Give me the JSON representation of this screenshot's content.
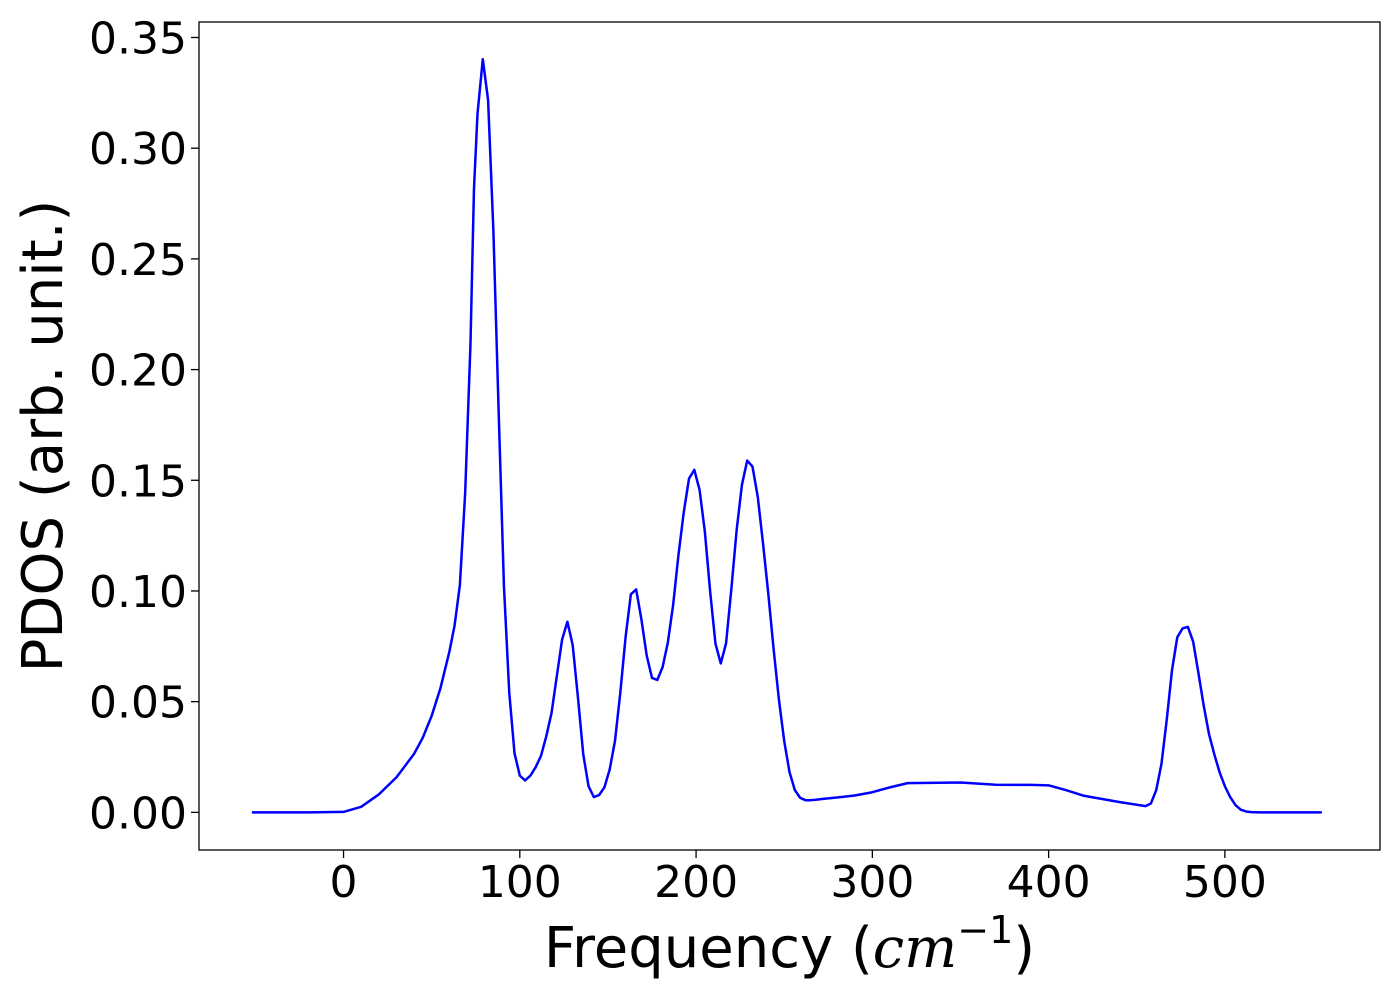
{
  "chart_data": {
    "type": "line",
    "title": "",
    "xlabel": "Frequency (cm^{-1})",
    "xlabel_parts": {
      "prefix": "Frequency (",
      "unit_base": "cm",
      "unit_exp": "−1",
      "suffix": ")"
    },
    "ylabel": "PDOS (arb. unit.)",
    "xlim": [
      -82,
      588
    ],
    "ylim": [
      -0.017,
      0.357
    ],
    "xticks": [
      0,
      100,
      200,
      300,
      400,
      500
    ],
    "xtick_labels": [
      "0",
      "100",
      "200",
      "300",
      "400",
      "500"
    ],
    "yticks": [
      0.0,
      0.05,
      0.1,
      0.15,
      0.2,
      0.25,
      0.3,
      0.35
    ],
    "ytick_labels": [
      "0.00",
      "0.05",
      "0.10",
      "0.15",
      "0.20",
      "0.25",
      "0.30",
      "0.35"
    ],
    "grid": false,
    "legend": "none",
    "series": [
      {
        "color": "#0000ff",
        "x": [
          -52,
          -40,
          -20,
          0,
          10,
          20,
          30,
          40,
          45,
          50,
          55,
          60,
          63,
          66,
          69,
          72,
          74,
          76,
          79,
          82,
          85,
          88,
          91,
          94,
          97,
          100,
          103,
          106,
          109,
          112,
          115,
          118,
          121,
          124,
          127,
          130,
          133,
          136,
          139,
          142,
          145,
          148,
          151,
          154,
          157,
          160,
          163,
          166,
          169,
          172,
          175,
          178,
          181,
          184,
          187,
          190,
          193,
          196,
          199,
          202,
          205,
          208,
          211,
          214,
          217,
          220,
          223,
          226,
          229,
          232,
          235,
          238,
          241,
          244,
          247,
          250,
          253,
          256,
          259,
          262,
          265,
          268,
          272,
          280,
          290,
          300,
          310,
          320,
          350,
          370,
          390,
          400,
          410,
          420,
          440,
          455,
          458,
          461,
          464,
          467,
          470,
          473,
          476,
          479,
          482,
          485,
          488,
          491,
          494,
          497,
          500,
          503,
          506,
          509,
          512,
          515,
          520,
          540,
          555
        ],
        "y": [
          0.0,
          0.0,
          0.0,
          0.0002,
          0.0025,
          0.0081,
          0.0158,
          0.0264,
          0.0338,
          0.0436,
          0.0562,
          0.0724,
          0.0844,
          0.1027,
          0.1443,
          0.2112,
          0.2817,
          0.3155,
          0.3402,
          0.3218,
          0.2629,
          0.181,
          0.1022,
          0.0542,
          0.0267,
          0.0166,
          0.0144,
          0.0166,
          0.0204,
          0.0255,
          0.0343,
          0.0449,
          0.0616,
          0.0781,
          0.0861,
          0.0756,
          0.0517,
          0.0262,
          0.0118,
          0.0069,
          0.0078,
          0.0113,
          0.0194,
          0.0323,
          0.0539,
          0.0791,
          0.0985,
          0.1007,
          0.0871,
          0.0708,
          0.0607,
          0.0598,
          0.0656,
          0.0768,
          0.0938,
          0.1162,
          0.1355,
          0.1508,
          0.1547,
          0.1456,
          0.1266,
          0.0996,
          0.0762,
          0.0673,
          0.0763,
          0.1008,
          0.1274,
          0.1479,
          0.1589,
          0.1562,
          0.1425,
          0.1213,
          0.0985,
          0.0736,
          0.0509,
          0.0322,
          0.0182,
          0.0101,
          0.0066,
          0.0055,
          0.0055,
          0.0057,
          0.0061,
          0.0067,
          0.0076,
          0.0091,
          0.0113,
          0.0132,
          0.0135,
          0.0125,
          0.0124,
          0.0122,
          0.01,
          0.0075,
          0.0047,
          0.0028,
          0.004,
          0.0099,
          0.0218,
          0.0417,
          0.0642,
          0.0791,
          0.0831,
          0.0838,
          0.0771,
          0.0629,
          0.0482,
          0.0353,
          0.0262,
          0.0181,
          0.0118,
          0.0069,
          0.0033,
          0.0012,
          0.0004,
          0.0001,
          0.0,
          0.0,
          0.0
        ]
      }
    ]
  }
}
